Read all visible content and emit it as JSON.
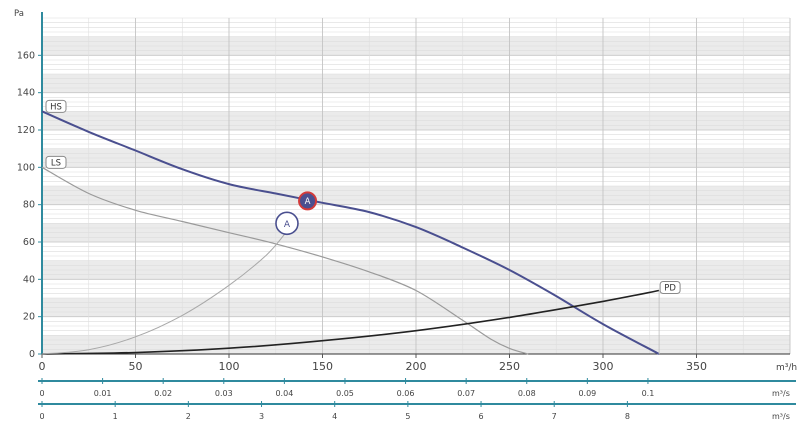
{
  "chart_data": {
    "type": "line",
    "title": "",
    "ylabel": "Pa",
    "xlabel": "m³/h",
    "xlim": [
      0,
      400
    ],
    "ylim": [
      0,
      180
    ],
    "x_ticks": [
      0,
      50,
      100,
      150,
      200,
      250,
      300,
      350
    ],
    "x_tick_labels": [
      "0",
      "50",
      "100",
      "150",
      "200",
      "250",
      "300",
      "350"
    ],
    "y_ticks": [
      0,
      20,
      40,
      60,
      80,
      100,
      120,
      140,
      160
    ],
    "y_tick_labels": [
      "0",
      "20",
      "40",
      "60",
      "80",
      "100",
      "120",
      "140",
      "160"
    ],
    "grid": true,
    "series": [
      {
        "name": "HS",
        "color": "#4a4f8f",
        "x": [
          0,
          25,
          50,
          75,
          100,
          125,
          140,
          150,
          175,
          200,
          225,
          250,
          275,
          300,
          330
        ],
        "y": [
          130,
          119,
          109,
          99,
          91,
          86,
          83,
          81,
          76,
          68,
          57,
          45,
          31,
          16,
          0
        ]
      },
      {
        "name": "LS",
        "color": "#9a9a9a",
        "x": [
          0,
          25,
          50,
          75,
          100,
          125,
          150,
          175,
          200,
          225,
          240,
          250,
          260
        ],
        "y": [
          100,
          86,
          77,
          71,
          65,
          59,
          52,
          44,
          34,
          18,
          8,
          3,
          0
        ]
      },
      {
        "name": "PD",
        "color": "#222222",
        "x": [
          0,
          50,
          100,
          150,
          200,
          250,
          300,
          330
        ],
        "y": [
          0,
          0.8,
          3.1,
          7.1,
          12.5,
          19.6,
          28.2,
          34
        ]
      },
      {
        "name": "",
        "color": "#a8a8a8",
        "x": [
          0,
          25,
          50,
          75,
          100,
          120,
          130
        ],
        "y": [
          0,
          2.3,
          9.2,
          20.7,
          36.8,
          53,
          64.5
        ]
      }
    ],
    "operating_point": {
      "label": "A",
      "x": 142,
      "y": 82
    },
    "reference_point": {
      "label": "A",
      "x": 131,
      "y": 70
    },
    "secondary_axes": [
      {
        "unit": "m³/s",
        "max": 0.1111,
        "ticks": [
          0,
          0.01,
          0.02,
          0.03,
          0.04,
          0.05,
          0.06,
          0.07,
          0.08,
          0.09,
          0.1
        ],
        "tick_labels": [
          "0",
          "0.01",
          "0.02",
          "0.03",
          "0.04",
          "0.05",
          "0.06",
          "0.07",
          "0.08",
          "0.09",
          "0.1"
        ]
      },
      {
        "unit": "m³/s",
        "max": 9.2,
        "ticks": [
          0,
          1,
          2,
          3,
          4,
          5,
          6,
          7,
          8
        ],
        "tick_labels": [
          "0",
          "1",
          "2",
          "3",
          "4",
          "5",
          "6",
          "7",
          "8"
        ]
      }
    ]
  },
  "colors": {
    "axis_teal": "#2f8a9e",
    "band_gray": "#ebebeb",
    "grid_line": "#d4d4d4"
  }
}
